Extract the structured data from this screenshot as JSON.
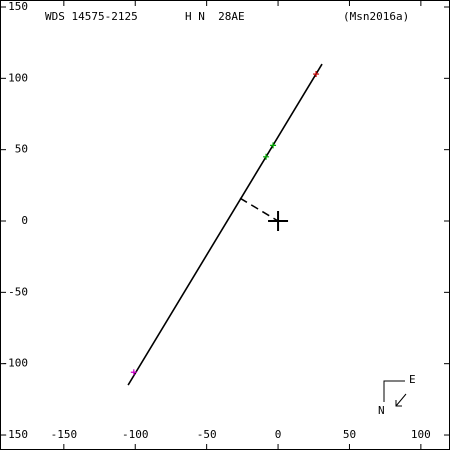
{
  "chart_data": {
    "type": "line",
    "labels": {
      "wds": "WDS 14575-2125",
      "name": "H N  28AE",
      "ref": "(Msn2016a)"
    },
    "compass": {
      "east": "E",
      "north": "N"
    },
    "xlim": [
      -194.7,
      120.4
    ],
    "ylim": [
      -160.5,
      154.9
    ],
    "xticks": [
      -150,
      -100,
      -50,
      0,
      50,
      100
    ],
    "yticks": [
      -150,
      -100,
      -50,
      0,
      50,
      100,
      150
    ],
    "series": [
      {
        "color": "#000000",
        "x": [
          -105,
          30.8
        ],
        "values": [
          -115,
          110
        ]
      },
      {
        "color": "#000000",
        "x": [
          -26.6,
          0
        ],
        "values": [
          16,
          0
        ],
        "dash": true
      },
      {
        "color": "#cc00cc",
        "x": [
          -101
        ],
        "values": [
          -106
        ],
        "marker": "plus"
      },
      {
        "color": "#00aa00",
        "x": [
          -3.5,
          -8.4
        ],
        "values": [
          53,
          45
        ],
        "marker": "plus"
      },
      {
        "color": "#cc0000",
        "x": [
          26.6
        ],
        "values": [
          103
        ],
        "marker": "plus"
      },
      {
        "color": "#000000",
        "x": [
          0
        ],
        "values": [
          0
        ],
        "marker": "big-plus"
      }
    ]
  }
}
